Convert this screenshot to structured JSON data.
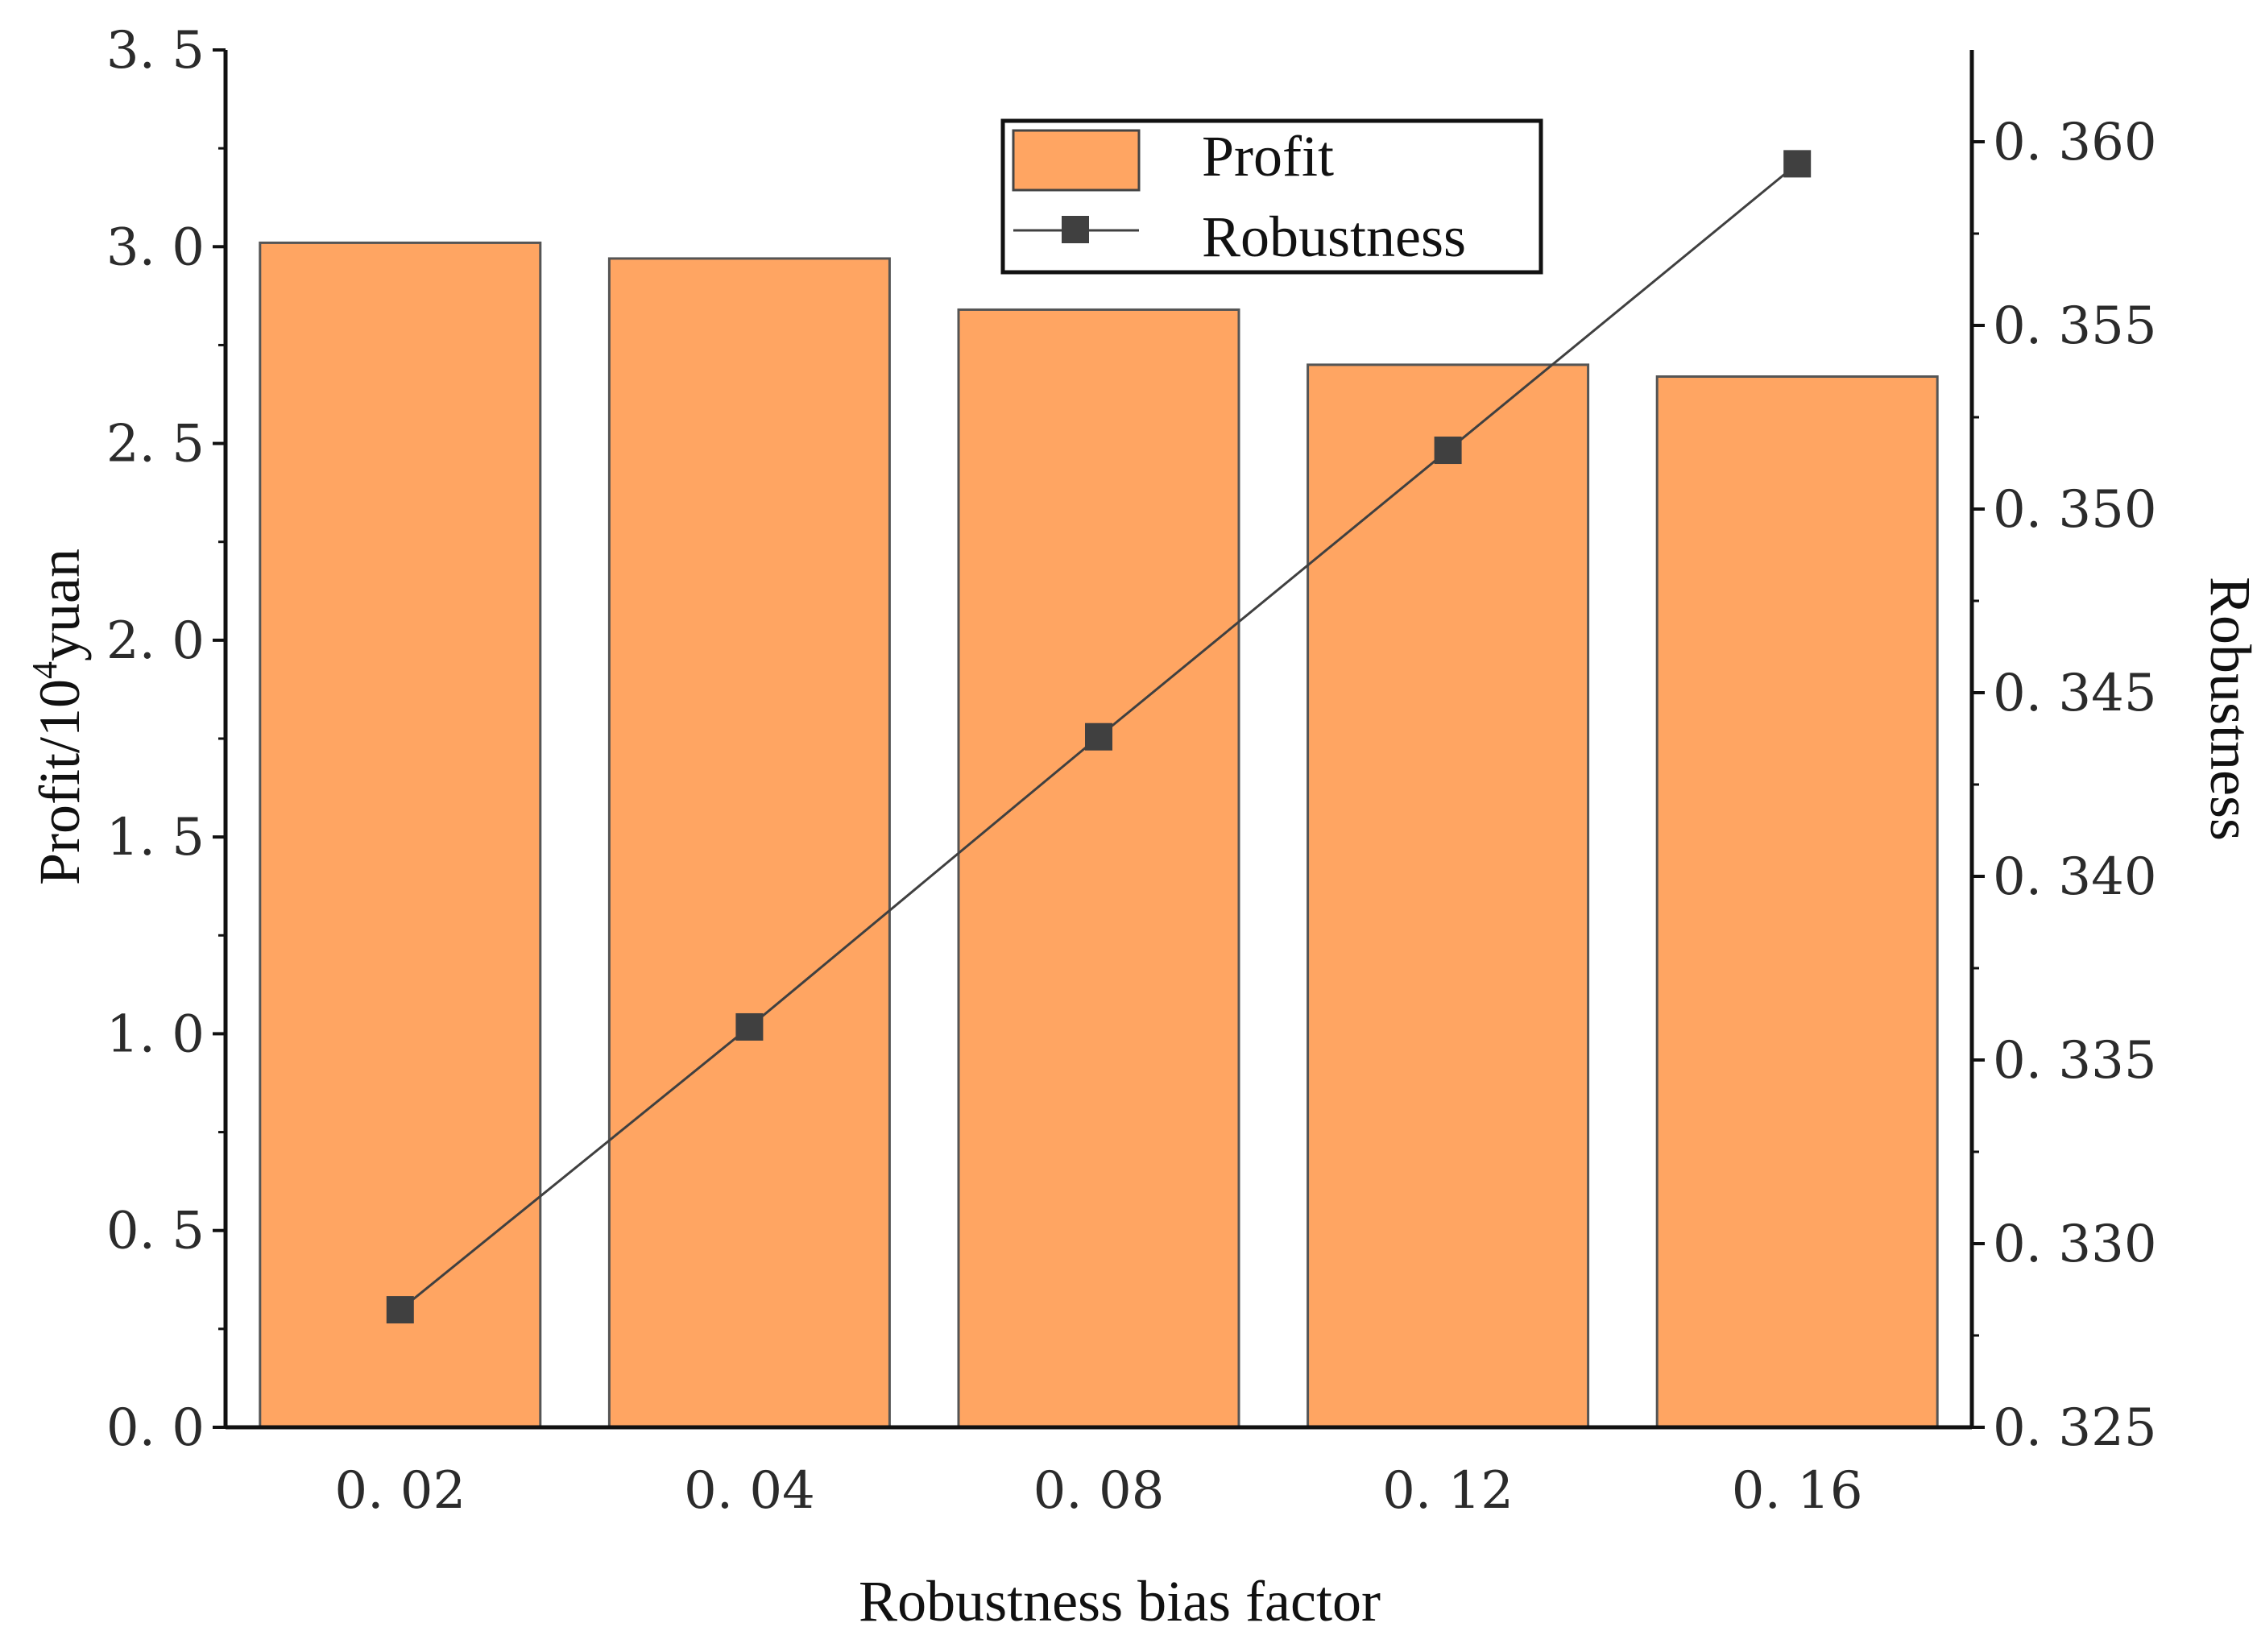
{
  "chart_data": {
    "type": "bar+line",
    "categories": [
      "0. 02",
      "0. 04",
      "0. 08",
      "0. 12",
      "0. 16"
    ],
    "series": [
      {
        "name": "Profit",
        "kind": "bar",
        "axis": "left",
        "values": [
          3.01,
          2.97,
          2.84,
          2.7,
          2.67
        ],
        "color": "#FFA562"
      },
      {
        "name": "Robustness",
        "kind": "line",
        "axis": "right",
        "values": [
          0.3282,
          0.3359,
          0.3438,
          0.3516,
          0.3594
        ],
        "color": "#404040"
      }
    ],
    "xlabel": "Robustness bias factor",
    "ylabel_left": {
      "pre": "Profit/10",
      "sup": "4",
      "post": "yuan"
    },
    "ylabel_right": "Robustness",
    "ylim_left": [
      0,
      3.5
    ],
    "ylim_right": [
      0.325,
      0.3625
    ],
    "yticks_left": [
      {
        "value": 0,
        "label": "0. 0"
      },
      {
        "value": 0.5,
        "label": "0. 5"
      },
      {
        "value": 1.0,
        "label": "1. 0"
      },
      {
        "value": 1.5,
        "label": "1. 5"
      },
      {
        "value": 2.0,
        "label": "2. 0"
      },
      {
        "value": 2.5,
        "label": "2. 5"
      },
      {
        "value": 3.0,
        "label": "3. 0"
      },
      {
        "value": 3.5,
        "label": "3. 5"
      }
    ],
    "yticks_right": [
      {
        "value": 0.325,
        "label": "0. 325"
      },
      {
        "value": 0.33,
        "label": "0. 330"
      },
      {
        "value": 0.335,
        "label": "0. 335"
      },
      {
        "value": 0.34,
        "label": "0. 340"
      },
      {
        "value": 0.345,
        "label": "0. 345"
      },
      {
        "value": 0.35,
        "label": "0. 350"
      },
      {
        "value": 0.355,
        "label": "0. 355"
      },
      {
        "value": 0.36,
        "label": "0. 360"
      }
    ],
    "grid": false,
    "legend": "top-center"
  }
}
